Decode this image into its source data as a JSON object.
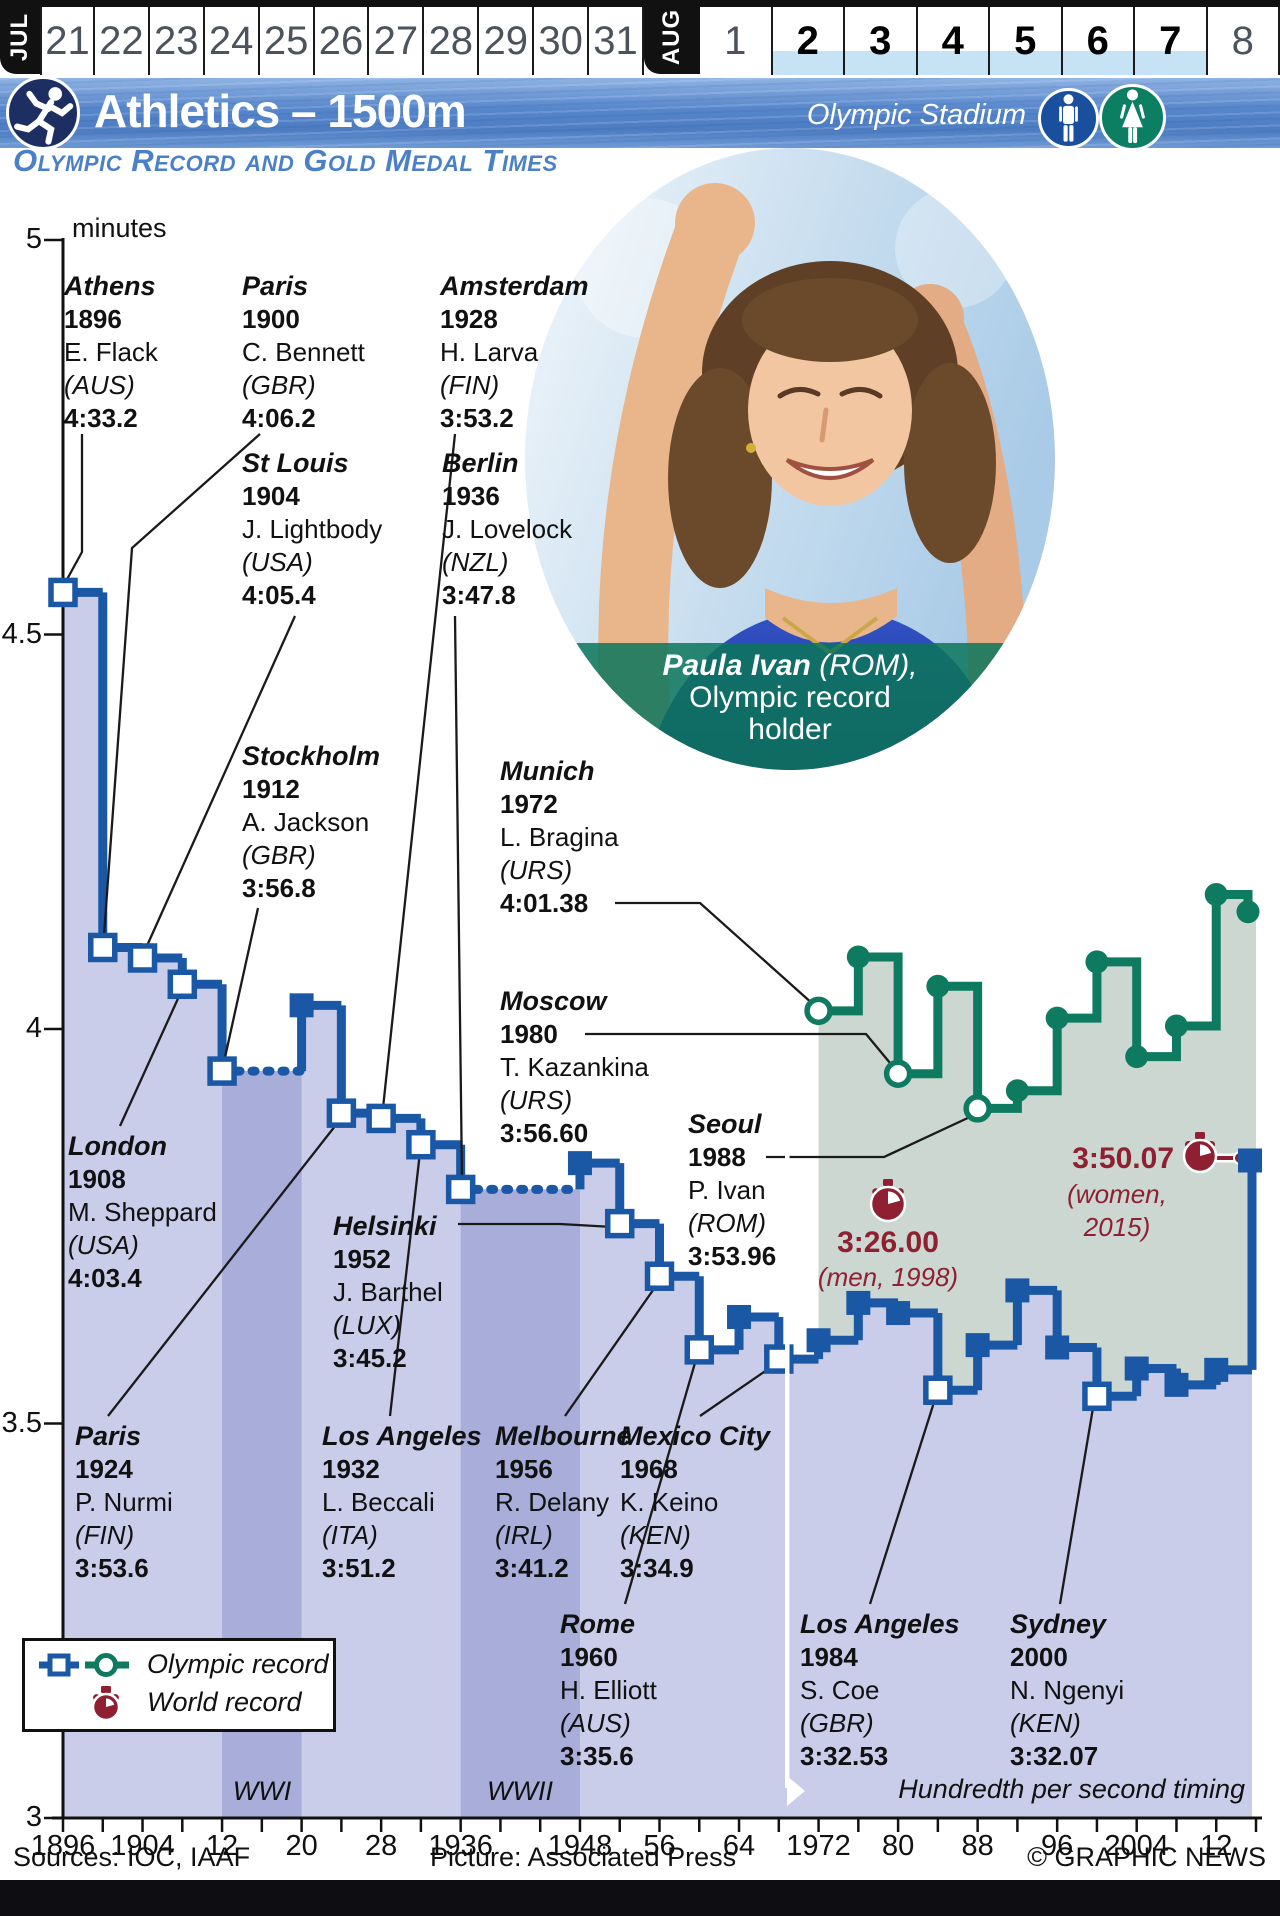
{
  "calendar": {
    "jul": {
      "label": "JUL",
      "days": [
        "21",
        "22",
        "23",
        "24",
        "25",
        "26",
        "27",
        "28",
        "29",
        "30",
        "31"
      ]
    },
    "aug": {
      "label": "AUG",
      "days": [
        "1",
        "2",
        "3",
        "4",
        "5",
        "6",
        "7",
        "8"
      ],
      "active_days": [
        "2",
        "3",
        "4",
        "5",
        "6",
        "7"
      ]
    }
  },
  "header": {
    "title": "Athletics – 1500m",
    "venue": "Olympic Stadium"
  },
  "subtitle": "Olympic Record and Gold Medal Times",
  "photo": {
    "caption": {
      "name": "Paula Ivan",
      "name_suffix": " (ROM),",
      "line2": "Olympic record",
      "line3": "holder"
    }
  },
  "legend": {
    "olympic_label": "Olympic record",
    "world_label": "World record"
  },
  "footer": {
    "sources": "Sources: IOC, IAAF",
    "picture": "Picture: Associated Press",
    "credit": "© GRAPHIC NEWS"
  },
  "chart_data": {
    "type": "line",
    "step": true,
    "title": "Olympic Record and Gold Medal Times",
    "y_axis": {
      "label": "minutes",
      "tick_labels": [
        "5",
        "4.5",
        "4",
        "3.5",
        "3"
      ],
      "tick_values": [
        5,
        4.5,
        4,
        3.5,
        3
      ],
      "range": [
        3,
        5
      ]
    },
    "x_axis": {
      "range": [
        1896,
        2016
      ],
      "tick_step_years": 4,
      "labeled_years": [
        1896,
        1904,
        1912,
        1920,
        1928,
        1936,
        1948,
        1956,
        1964,
        1972,
        1980,
        1988,
        1996,
        2004,
        2012
      ],
      "tick_labels": [
        "1896",
        "1904",
        "12",
        "20",
        "28",
        "1936",
        "1948",
        "56",
        "64",
        "1972",
        "80",
        "88",
        "96",
        "2004",
        "12"
      ]
    },
    "series": [
      {
        "name": "men",
        "color": "#1a57a5",
        "marker": "square",
        "dashed_gaps": [
          [
            1912,
            1920
          ],
          [
            1936,
            1948
          ]
        ],
        "points": [
          {
            "year": 1896,
            "time": "4:33.2",
            "seconds": 273.2
          },
          {
            "year": 1900,
            "time": "4:06.2",
            "seconds": 246.2
          },
          {
            "year": 1904,
            "time": "4:05.4",
            "seconds": 245.4
          },
          {
            "year": 1908,
            "time": "4:03.4",
            "seconds": 243.4
          },
          {
            "year": 1912,
            "time": "3:56.8",
            "seconds": 236.8
          },
          {
            "year": 1920,
            "time": "4:01.8",
            "seconds": 241.8
          },
          {
            "year": 1924,
            "time": "3:53.6",
            "seconds": 233.6
          },
          {
            "year": 1928,
            "time": "3:53.2",
            "seconds": 233.2
          },
          {
            "year": 1932,
            "time": "3:51.2",
            "seconds": 231.2
          },
          {
            "year": 1936,
            "time": "3:47.8",
            "seconds": 227.8
          },
          {
            "year": 1948,
            "time": "3:49.8",
            "seconds": 229.8
          },
          {
            "year": 1952,
            "time": "3:45.2",
            "seconds": 225.2
          },
          {
            "year": 1956,
            "time": "3:41.2",
            "seconds": 221.2
          },
          {
            "year": 1960,
            "time": "3:35.6",
            "seconds": 215.6
          },
          {
            "year": 1964,
            "time": "3:38.1",
            "seconds": 218.1
          },
          {
            "year": 1968,
            "time": "3:34.9",
            "seconds": 214.9
          },
          {
            "year": 1972,
            "time": "3:36.33",
            "seconds": 216.33
          },
          {
            "year": 1976,
            "time": "3:39.17",
            "seconds": 219.17
          },
          {
            "year": 1980,
            "time": "3:38.40",
            "seconds": 218.4
          },
          {
            "year": 1984,
            "time": "3:32.53",
            "seconds": 212.53
          },
          {
            "year": 1988,
            "time": "3:35.96",
            "seconds": 215.96
          },
          {
            "year": 1992,
            "time": "3:40.12",
            "seconds": 220.12
          },
          {
            "year": 1996,
            "time": "3:35.78",
            "seconds": 215.78
          },
          {
            "year": 2000,
            "time": "3:32.07",
            "seconds": 212.07
          },
          {
            "year": 2004,
            "time": "3:34.18",
            "seconds": 214.18
          },
          {
            "year": 2008,
            "time": "3:32.94",
            "seconds": 212.94
          },
          {
            "year": 2012,
            "time": "3:34.08",
            "seconds": 214.08
          },
          {
            "year": 2016,
            "time": "3:50.00",
            "seconds": 230.0
          }
        ]
      },
      {
        "name": "women",
        "color": "#0e7a5f",
        "marker": "circle",
        "dashed_gaps": [],
        "points": [
          {
            "year": 1972,
            "time": "4:01.38",
            "seconds": 241.38
          },
          {
            "year": 1976,
            "time": "4:05.48",
            "seconds": 245.48
          },
          {
            "year": 1980,
            "time": "3:56.60",
            "seconds": 236.6
          },
          {
            "year": 1984,
            "time": "4:03.25",
            "seconds": 243.25
          },
          {
            "year": 1988,
            "time": "3:53.96",
            "seconds": 233.96
          },
          {
            "year": 1992,
            "time": "3:55.30",
            "seconds": 235.3
          },
          {
            "year": 1996,
            "time": "4:00.83",
            "seconds": 240.83
          },
          {
            "year": 2000,
            "time": "4:05.10",
            "seconds": 245.1
          },
          {
            "year": 2004,
            "time": "3:57.90",
            "seconds": 237.9
          },
          {
            "year": 2008,
            "time": "4:00.23",
            "seconds": 240.23
          },
          {
            "year": 2012,
            "time": "4:10.23",
            "seconds": 250.23
          },
          {
            "year": 2016,
            "time": "4:08.92",
            "seconds": 248.92
          }
        ]
      }
    ],
    "bands": [
      {
        "label": "WWI",
        "from": 1912,
        "to": 1920
      },
      {
        "label": "WWII",
        "from": 1936,
        "to": 1948
      }
    ],
    "world_records": [
      {
        "time": "3:26.00",
        "note": "(men, 1998)"
      },
      {
        "time": "3:50.07",
        "note": "(women, 2015)"
      }
    ],
    "timing_note": "Hundredth per second timing",
    "annotations": [
      {
        "id": "athens",
        "city": "Athens",
        "year": "1896",
        "athlete": "E. Flack",
        "country": "(AUS)",
        "time": "4:33.2",
        "series": "men",
        "point_year": 1896
      },
      {
        "id": "paris-1900",
        "city": "Paris",
        "year": "1900",
        "athlete": "C. Bennett",
        "country": "(GBR)",
        "time": "4:06.2",
        "series": "men",
        "point_year": 1900
      },
      {
        "id": "st-louis",
        "city": "St Louis",
        "year": "1904",
        "athlete": "J. Lightbody",
        "country": "(USA)",
        "time": "4:05.4",
        "series": "men",
        "point_year": 1904
      },
      {
        "id": "london",
        "city": "London",
        "year": "1908",
        "athlete": "M. Sheppard",
        "country": "(USA)",
        "time": "4:03.4",
        "series": "men",
        "point_year": 1908
      },
      {
        "id": "stockholm",
        "city": "Stockholm",
        "year": "1912",
        "athlete": "A. Jackson",
        "country": "(GBR)",
        "time": "3:56.8",
        "series": "men",
        "point_year": 1912
      },
      {
        "id": "paris-1924",
        "city": "Paris",
        "year": "1924",
        "athlete": "P. Nurmi",
        "country": "(FIN)",
        "time": "3:53.6",
        "series": "men",
        "point_year": 1924
      },
      {
        "id": "amsterdam",
        "city": "Amsterdam",
        "year": "1928",
        "athlete": "H. Larva",
        "country": "(FIN)",
        "time": "3:53.2",
        "series": "men",
        "point_year": 1928
      },
      {
        "id": "los-angeles-1932",
        "city": "Los Angeles",
        "year": "1932",
        "athlete": "L. Beccali",
        "country": "(ITA)",
        "time": "3:51.2",
        "series": "men",
        "point_year": 1932
      },
      {
        "id": "berlin",
        "city": "Berlin",
        "year": "1936",
        "athlete": "J. Lovelock",
        "country": "(NZL)",
        "time": "3:47.8",
        "series": "men",
        "point_year": 1936
      },
      {
        "id": "helsinki",
        "city": "Helsinki",
        "year": "1952",
        "athlete": "J. Barthel",
        "country": "(LUX)",
        "time": "3:45.2",
        "series": "men",
        "point_year": 1952
      },
      {
        "id": "melbourne",
        "city": "Melbourne",
        "year": "1956",
        "athlete": "R. Delany",
        "country": "(IRL)",
        "time": "3:41.2",
        "series": "men",
        "point_year": 1956
      },
      {
        "id": "rome",
        "city": "Rome",
        "year": "1960",
        "athlete": "H. Elliott",
        "country": "(AUS)",
        "time": "3:35.6",
        "series": "men",
        "point_year": 1960
      },
      {
        "id": "mexico-city",
        "city": "Mexico City",
        "year": "1968",
        "athlete": "K. Keino",
        "country": "(KEN)",
        "time": "3:34.9",
        "series": "men",
        "point_year": 1968
      },
      {
        "id": "munich",
        "city": "Munich",
        "year": "1972",
        "athlete": "L. Bragina",
        "country": "(URS)",
        "time": "4:01.38",
        "series": "women",
        "point_year": 1972
      },
      {
        "id": "moscow",
        "city": "Moscow",
        "year": "1980",
        "athlete": "T. Kazankina",
        "country": "(URS)",
        "time": "3:56.60",
        "series": "women",
        "point_year": 1980
      },
      {
        "id": "seoul",
        "city": "Seoul",
        "year": "1988",
        "athlete": "P. Ivan",
        "country": "(ROM)",
        "time": "3:53.96",
        "series": "women",
        "point_year": 1988
      },
      {
        "id": "los-angeles-1984",
        "city": "Los Angeles",
        "year": "1984",
        "athlete": "S. Coe",
        "country": "(GBR)",
        "time": "3:32.53",
        "series": "men",
        "point_year": 1984
      },
      {
        "id": "sydney",
        "city": "Sydney",
        "year": "2000",
        "athlete": "N. Ngenyi",
        "country": "(KEN)",
        "time": "3:32.07",
        "series": "men",
        "point_year": 2000
      }
    ],
    "colors": {
      "men_line": "#1a57a5",
      "women_line": "#0e7a5f",
      "men_fill": "#c9cdea",
      "war_band": "#a8aed9",
      "women_fill": "#cbd7d0",
      "record_red": "#8e2031"
    }
  }
}
